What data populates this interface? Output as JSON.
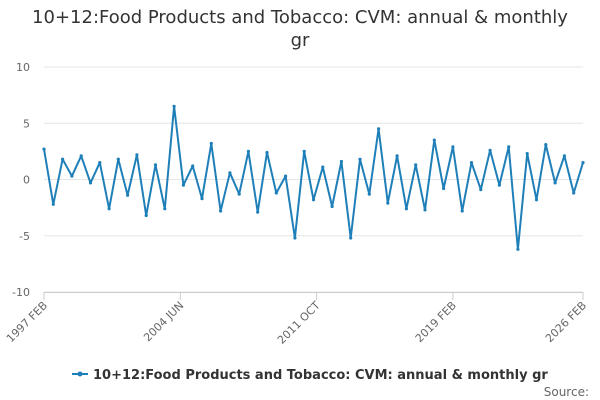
{
  "chart_data": {
    "type": "line",
    "title_line1": "10+12:Food Products and Tobacco: CVM: annual & monthly",
    "title_line2": "gr",
    "y_ticks": [
      "10",
      "5",
      "0",
      "-5",
      "-10"
    ],
    "ylim": [
      -10,
      10
    ],
    "x_range": [
      "1997 FEB",
      "2026 FEB"
    ],
    "x_ticks": [
      "1997 FEB",
      "2004 JUN",
      "2011 OCT",
      "2019 FEB",
      "2026 FEB"
    ],
    "grid": true,
    "legend_position": "bottom",
    "credit": "Source:",
    "series": [
      {
        "name": "10+12:Food Products and Tobacco: CVM: annual & monthly gr",
        "color": "#1f7fb8",
        "x": [
          "1997 FEB",
          "1997 AUG",
          "1998 FEB",
          "1998 AUG",
          "1999 FEB",
          "1999 AUG",
          "2000 FEB",
          "2000 AUG",
          "2001 FEB",
          "2001 AUG",
          "2002 FEB",
          "2002 AUG",
          "2003 FEB",
          "2003 AUG",
          "2004 FEB",
          "2004 AUG",
          "2005 FEB",
          "2005 AUG",
          "2006 FEB",
          "2006 AUG",
          "2007 FEB",
          "2007 AUG",
          "2008 FEB",
          "2008 AUG",
          "2009 FEB",
          "2009 AUG",
          "2010 FEB",
          "2010 AUG",
          "2011 FEB",
          "2011 AUG",
          "2012 FEB",
          "2012 AUG",
          "2013 FEB",
          "2013 AUG",
          "2014 FEB",
          "2014 AUG",
          "2015 FEB",
          "2015 AUG",
          "2016 FEB",
          "2016 AUG",
          "2017 FEB",
          "2017 AUG",
          "2018 FEB",
          "2018 AUG",
          "2019 FEB",
          "2019 AUG",
          "2020 FEB",
          "2020 AUG",
          "2021 FEB",
          "2021 AUG",
          "2022 FEB",
          "2022 AUG",
          "2023 FEB",
          "2023 AUG",
          "2024 FEB",
          "2024 AUG",
          "2025 FEB",
          "2025 AUG",
          "2026 FEB"
        ],
        "values": [
          2.7,
          -2.2,
          1.8,
          0.3,
          2.1,
          -0.3,
          1.5,
          -2.6,
          1.8,
          -1.4,
          2.2,
          -3.2,
          1.3,
          -2.6,
          6.5,
          -0.5,
          1.2,
          -1.7,
          3.2,
          -2.8,
          0.6,
          -1.3,
          2.5,
          -2.9,
          2.4,
          -1.2,
          0.3,
          -5.2,
          2.5,
          -1.8,
          1.1,
          -2.4,
          1.6,
          -5.2,
          1.8,
          -1.3,
          4.5,
          -2.1,
          2.1,
          -2.6,
          1.3,
          -2.7,
          3.5,
          -0.8,
          2.9,
          -2.8,
          1.5,
          -0.9,
          2.6,
          -0.5,
          2.9,
          -6.2,
          2.3,
          -1.8,
          3.1,
          -0.3,
          2.1,
          -1.2,
          1.5
        ]
      }
    ]
  }
}
